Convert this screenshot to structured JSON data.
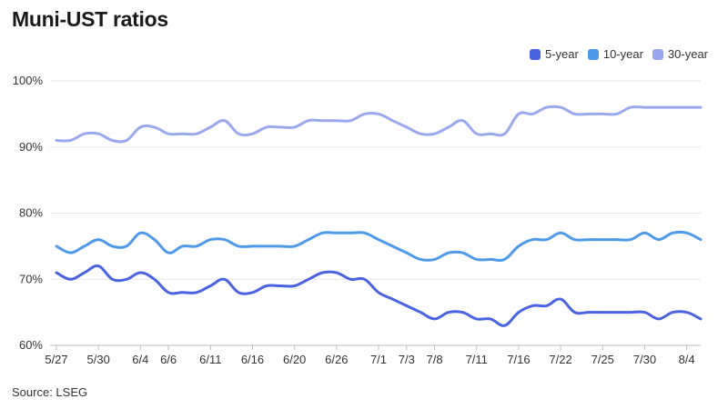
{
  "title": "Muni-UST ratios",
  "source": "Source: LSEG",
  "chart_data": {
    "type": "line",
    "title": "Muni-UST ratios",
    "xlabel": "",
    "ylabel": "",
    "ylim": [
      60,
      100
    ],
    "yticks": [
      60,
      70,
      80,
      90,
      100
    ],
    "ytick_labels": [
      "60%",
      "70%",
      "80%",
      "90%",
      "100%"
    ],
    "grid": true,
    "legend_position": "top-right",
    "x_tick_labels": [
      {
        "i": 0,
        "label": "5/27"
      },
      {
        "i": 3,
        "label": "5/30"
      },
      {
        "i": 6,
        "label": "6/4"
      },
      {
        "i": 8,
        "label": "6/6"
      },
      {
        "i": 11,
        "label": "6/11"
      },
      {
        "i": 14,
        "label": "6/16"
      },
      {
        "i": 17,
        "label": "6/20"
      },
      {
        "i": 20,
        "label": "6/26"
      },
      {
        "i": 23,
        "label": "7/1"
      },
      {
        "i": 25,
        "label": "7/3"
      },
      {
        "i": 27,
        "label": "7/8"
      },
      {
        "i": 30,
        "label": "7/11"
      },
      {
        "i": 33,
        "label": "7/16"
      },
      {
        "i": 36,
        "label": "7/22"
      },
      {
        "i": 39,
        "label": "7/25"
      },
      {
        "i": 42,
        "label": "7/30"
      },
      {
        "i": 45,
        "label": "8/4"
      }
    ],
    "n_points": 47,
    "series": [
      {
        "name": "5-year",
        "color": "#4a63e0",
        "values": [
          71,
          70,
          71,
          72,
          70,
          70,
          71,
          70,
          68,
          68,
          68,
          69,
          70,
          68,
          68,
          69,
          69,
          69,
          70,
          71,
          71,
          70,
          70,
          68,
          67,
          66,
          65,
          64,
          65,
          65,
          64,
          64,
          63,
          65,
          66,
          66,
          67,
          65,
          65,
          65,
          65,
          65,
          65,
          64,
          65,
          65,
          64
        ]
      },
      {
        "name": "10-year",
        "color": "#4f9ae8",
        "values": [
          75,
          74,
          75,
          76,
          75,
          75,
          77,
          76,
          74,
          75,
          75,
          76,
          76,
          75,
          75,
          75,
          75,
          75,
          76,
          77,
          77,
          77,
          77,
          76,
          75,
          74,
          73,
          73,
          74,
          74,
          73,
          73,
          73,
          75,
          76,
          76,
          77,
          76,
          76,
          76,
          76,
          76,
          77,
          76,
          77,
          77,
          76
        ]
      },
      {
        "name": "30-year",
        "color": "#9aa8ef",
        "values": [
          91,
          91,
          92,
          92,
          91,
          91,
          93,
          93,
          92,
          92,
          92,
          93,
          94,
          92,
          92,
          93,
          93,
          93,
          94,
          94,
          94,
          94,
          95,
          95,
          94,
          93,
          92,
          92,
          93,
          94,
          92,
          92,
          92,
          95,
          95,
          96,
          96,
          95,
          95,
          95,
          95,
          96,
          96,
          96,
          96,
          96,
          96
        ]
      }
    ]
  }
}
